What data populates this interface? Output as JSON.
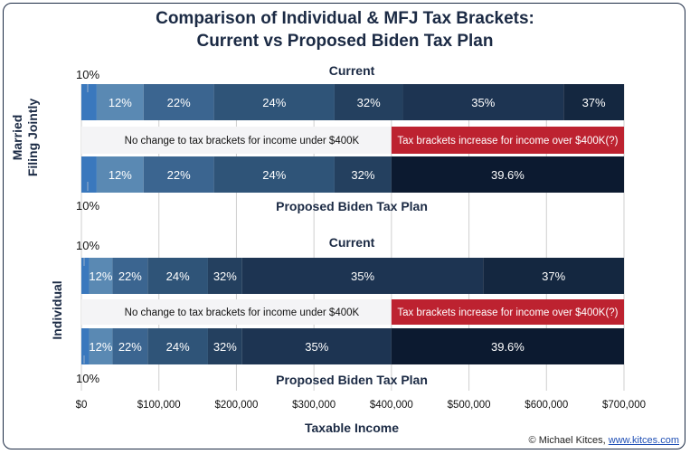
{
  "chart": {
    "title_line1": "Comparison of Individual & MFJ Tax Brackets:",
    "title_line2": "Current vs Proposed Biden Tax Plan",
    "credit_prefix": "© Michael Kitces, ",
    "credit_link": "www.kitces.com"
  },
  "chart_data": {
    "type": "bar",
    "subtype": "stacked-horizontal-range",
    "title": "Comparison of Individual & MFJ Tax Brackets: Current vs Proposed Biden Tax Plan",
    "xlabel": "Taxable Income",
    "xlim": [
      0,
      700000
    ],
    "xticks": [
      0,
      100000,
      200000,
      300000,
      400000,
      500000,
      600000,
      700000
    ],
    "xtick_labels": [
      "$0",
      "$100,000",
      "$200,000",
      "$300,000",
      "$400,000",
      "$500,000",
      "$600,000",
      "$700,000"
    ],
    "grid": true,
    "colors": {
      "b10": "#3a78bd",
      "b12": "#5a89b3",
      "b22": "#3b6590",
      "b24": "#2f5478",
      "b32": "#24405f",
      "b35": "#1d3452",
      "b37": "#142740",
      "b396": "#0c1a30",
      "nochange_bg": "#f4f4f6",
      "increase_bg": "#bd2230",
      "title": "#1b2a44"
    },
    "groups": [
      {
        "name": "Married Filing Jointly",
        "rows": [
          {
            "label": "Current",
            "brackets": [
              {
                "rate": "10%",
                "start": 0,
                "end": 19750,
                "color": "b10",
                "label_outside": true
              },
              {
                "rate": "12%",
                "start": 19750,
                "end": 80250,
                "color": "b12"
              },
              {
                "rate": "22%",
                "start": 80250,
                "end": 171050,
                "color": "b22"
              },
              {
                "rate": "24%",
                "start": 171050,
                "end": 326600,
                "color": "b24"
              },
              {
                "rate": "32%",
                "start": 326600,
                "end": 414700,
                "color": "b32"
              },
              {
                "rate": "35%",
                "start": 414700,
                "end": 622050,
                "color": "b35"
              },
              {
                "rate": "37%",
                "start": 622050,
                "end": 700000,
                "color": "b37"
              }
            ]
          },
          {
            "label": "Proposed Biden Tax Plan",
            "brackets": [
              {
                "rate": "10%",
                "start": 0,
                "end": 19750,
                "color": "b10",
                "label_outside": true
              },
              {
                "rate": "12%",
                "start": 19750,
                "end": 80250,
                "color": "b12"
              },
              {
                "rate": "22%",
                "start": 80250,
                "end": 171050,
                "color": "b22"
              },
              {
                "rate": "24%",
                "start": 171050,
                "end": 326600,
                "color": "b24"
              },
              {
                "rate": "32%",
                "start": 326600,
                "end": 400000,
                "color": "b32"
              },
              {
                "rate": "39.6%",
                "start": 400000,
                "end": 700000,
                "color": "b396"
              }
            ]
          }
        ],
        "annotations": {
          "no_change": "No change to tax brackets for income under $400K",
          "increase": "Tax brackets increase for income over $400K(?)",
          "split": 400000
        }
      },
      {
        "name": "Individual",
        "rows": [
          {
            "label": "Current",
            "brackets": [
              {
                "rate": "10%",
                "start": 0,
                "end": 9875,
                "color": "b10",
                "label_outside": true
              },
              {
                "rate": "12%",
                "start": 9875,
                "end": 40125,
                "color": "b12"
              },
              {
                "rate": "22%",
                "start": 40125,
                "end": 85525,
                "color": "b22"
              },
              {
                "rate": "24%",
                "start": 85525,
                "end": 163300,
                "color": "b24"
              },
              {
                "rate": "32%",
                "start": 163300,
                "end": 207350,
                "color": "b32"
              },
              {
                "rate": "35%",
                "start": 207350,
                "end": 518400,
                "color": "b35"
              },
              {
                "rate": "37%",
                "start": 518400,
                "end": 700000,
                "color": "b37"
              }
            ]
          },
          {
            "label": "Proposed Biden Tax Plan",
            "brackets": [
              {
                "rate": "10%",
                "start": 0,
                "end": 9875,
                "color": "b10",
                "label_outside": true
              },
              {
                "rate": "12%",
                "start": 9875,
                "end": 40125,
                "color": "b12"
              },
              {
                "rate": "22%",
                "start": 40125,
                "end": 85525,
                "color": "b22"
              },
              {
                "rate": "24%",
                "start": 85525,
                "end": 163300,
                "color": "b24"
              },
              {
                "rate": "32%",
                "start": 163300,
                "end": 207350,
                "color": "b32"
              },
              {
                "rate": "35%",
                "start": 207350,
                "end": 400000,
                "color": "b35"
              },
              {
                "rate": "39.6%",
                "start": 400000,
                "end": 700000,
                "color": "b396"
              }
            ]
          }
        ],
        "annotations": {
          "no_change": "No change to tax brackets for income under $400K",
          "increase": "Tax brackets increase for income over $400K(?)",
          "split": 400000
        }
      }
    ]
  }
}
